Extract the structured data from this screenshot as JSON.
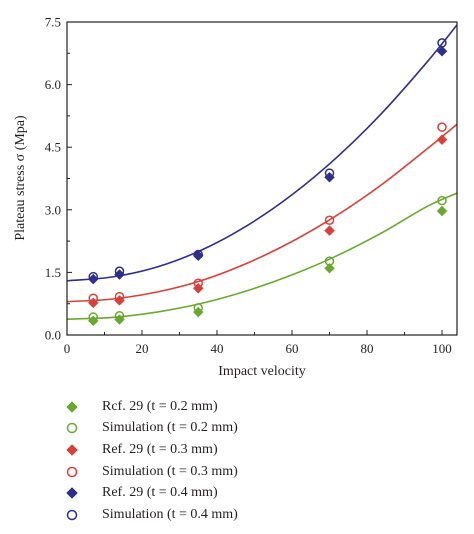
{
  "chart_data": {
    "type": "scatter",
    "xlabel": "Impact velocity",
    "ylabel": "Plateau stress σ (Mpa)",
    "xlim": [
      0,
      104
    ],
    "ylim": [
      0,
      7.5
    ],
    "xticks": [
      "0",
      "20",
      "40",
      "60",
      "80",
      "100"
    ],
    "xtick_values": [
      0,
      20,
      40,
      60,
      80,
      100
    ],
    "yticks": [
      "0.0",
      "1.5",
      "3.0",
      "4.5",
      "6.0",
      "7.5"
    ],
    "ytick_values": [
      0,
      1.5,
      3.0,
      4.5,
      6.0,
      7.5
    ],
    "grid": false,
    "legend_position": "below",
    "x": [
      7,
      14,
      35,
      70,
      100
    ],
    "series": [
      {
        "name": "Rcf. 29 (t = 0.2 mm)",
        "marker": "diamond-filled",
        "color": "#6aa832",
        "x": [
          7,
          14,
          35,
          70,
          100
        ],
        "values": [
          0.34,
          0.37,
          0.55,
          1.6,
          2.97
        ]
      },
      {
        "name": "Simulation (t = 0.2 mm)",
        "marker": "circle-open",
        "color": "#6aa832",
        "x": [
          7,
          14,
          35,
          70,
          100
        ],
        "values": [
          0.43,
          0.46,
          0.65,
          1.77,
          3.22
        ]
      },
      {
        "name": "Ref. 29 (t = 0.3 mm)",
        "marker": "diamond-filled",
        "color": "#d6413a",
        "x": [
          7,
          14,
          35,
          70,
          100
        ],
        "values": [
          0.77,
          0.83,
          1.12,
          2.5,
          4.68
        ]
      },
      {
        "name": "Simulation (t = 0.3 mm)",
        "marker": "circle-open",
        "color": "#d6413a",
        "x": [
          7,
          14,
          35,
          70,
          100
        ],
        "values": [
          0.88,
          0.92,
          1.24,
          2.75,
          4.98
        ]
      },
      {
        "name": "Ref. 29 (t = 0.4 mm)",
        "marker": "diamond-filled",
        "color": "#2e2e8e",
        "x": [
          7,
          14,
          35,
          70,
          100
        ],
        "values": [
          1.34,
          1.45,
          1.9,
          3.78,
          6.8
        ]
      },
      {
        "name": "Simulation (t = 0.4 mm)",
        "marker": "circle-open",
        "color": "#2e2e8e",
        "x": [
          7,
          14,
          35,
          70,
          100
        ],
        "values": [
          1.4,
          1.53,
          1.93,
          3.88,
          7.0
        ]
      }
    ],
    "fit_lines": [
      {
        "color": "#6aa832",
        "x": [
          0,
          12,
          24,
          36,
          48,
          60,
          72,
          84,
          96,
          104
        ],
        "values": [
          0.38,
          0.42,
          0.55,
          0.76,
          1.06,
          1.44,
          1.9,
          2.45,
          3.08,
          3.4
        ]
      },
      {
        "color": "#d6413a",
        "x": [
          0,
          12,
          24,
          36,
          48,
          60,
          72,
          84,
          96,
          104
        ],
        "values": [
          0.8,
          0.86,
          1.03,
          1.31,
          1.72,
          2.24,
          2.87,
          3.61,
          4.46,
          5.05
        ]
      },
      {
        "color": "#2e2e8e",
        "x": [
          0,
          12,
          24,
          36,
          48,
          60,
          72,
          84,
          96,
          104
        ],
        "values": [
          1.3,
          1.39,
          1.63,
          2.04,
          2.62,
          3.36,
          4.26,
          5.32,
          6.54,
          7.43
        ]
      }
    ]
  }
}
